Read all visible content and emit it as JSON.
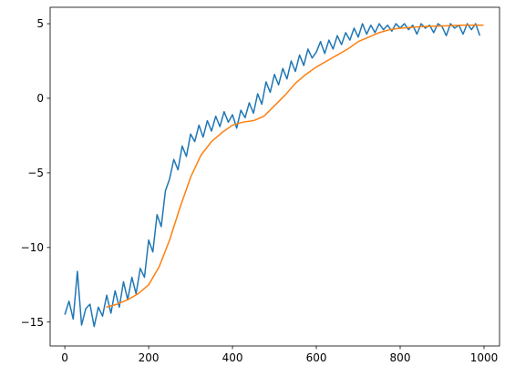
{
  "chart_data": {
    "type": "line",
    "xlim": [
      -35,
      1037
    ],
    "ylim": [
      -16.6,
      6.1
    ],
    "xticks": [
      0,
      200,
      400,
      600,
      800,
      1000
    ],
    "yticks": [
      {
        "value": -15,
        "label": "−15"
      },
      {
        "value": -10,
        "label": "−10"
      },
      {
        "value": -5,
        "label": "−5"
      },
      0,
      5
    ],
    "series": [
      {
        "color": "#1f77b4",
        "x": [
          0,
          10,
          20,
          30,
          40,
          50,
          60,
          70,
          80,
          90,
          100,
          110,
          120,
          130,
          140,
          150,
          160,
          170,
          180,
          190,
          200,
          210,
          220,
          230,
          240,
          250,
          260,
          270,
          280,
          290,
          300,
          310,
          320,
          330,
          340,
          350,
          360,
          370,
          380,
          390,
          400,
          410,
          420,
          430,
          440,
          450,
          460,
          470,
          480,
          490,
          500,
          510,
          520,
          530,
          540,
          550,
          560,
          570,
          580,
          590,
          600,
          610,
          620,
          630,
          640,
          650,
          660,
          670,
          680,
          690,
          700,
          710,
          720,
          730,
          740,
          750,
          760,
          770,
          780,
          790,
          800,
          810,
          820,
          830,
          840,
          850,
          860,
          870,
          880,
          890,
          900,
          910,
          920,
          930,
          940,
          950,
          960,
          970,
          980,
          990
        ],
        "values": [
          -14.5,
          -13.6,
          -14.8,
          -11.6,
          -15.2,
          -14.1,
          -13.8,
          -15.3,
          -14.0,
          -14.6,
          -13.2,
          -14.4,
          -12.9,
          -14.0,
          -12.3,
          -13.5,
          -12.0,
          -13.1,
          -11.4,
          -12.0,
          -9.5,
          -10.3,
          -7.8,
          -8.6,
          -6.2,
          -5.4,
          -4.1,
          -4.8,
          -3.2,
          -3.9,
          -2.4,
          -2.9,
          -1.8,
          -2.6,
          -1.5,
          -2.2,
          -1.2,
          -1.9,
          -0.9,
          -1.6,
          -1.1,
          -2.0,
          -0.8,
          -1.3,
          -0.3,
          -1.0,
          0.3,
          -0.4,
          1.1,
          0.4,
          1.6,
          0.9,
          2.0,
          1.3,
          2.5,
          1.8,
          2.9,
          2.2,
          3.3,
          2.7,
          3.1,
          3.8,
          3.0,
          3.9,
          3.3,
          4.2,
          3.6,
          4.4,
          3.9,
          4.7,
          4.1,
          5.0,
          4.3,
          4.9,
          4.4,
          5.0,
          4.6,
          4.9,
          4.5,
          5.0,
          4.7,
          5.0,
          4.6,
          4.9,
          4.3,
          5.0,
          4.7,
          4.9,
          4.4,
          5.0,
          4.8,
          4.2,
          5.0,
          4.7,
          4.9,
          4.3,
          5.0,
          4.6,
          5.0,
          4.2
        ]
      },
      {
        "color": "#ff7f0e",
        "x": [
          99,
          125,
          150,
          175,
          200,
          225,
          250,
          275,
          300,
          325,
          350,
          375,
          400,
          425,
          450,
          475,
          500,
          525,
          550,
          575,
          600,
          625,
          650,
          675,
          700,
          725,
          750,
          775,
          800,
          850,
          900,
          950,
          999
        ],
        "values": [
          -14.0,
          -13.8,
          -13.5,
          -13.1,
          -12.5,
          -11.3,
          -9.5,
          -7.3,
          -5.3,
          -3.8,
          -2.9,
          -2.3,
          -1.8,
          -1.6,
          -1.5,
          -1.2,
          -0.5,
          0.2,
          1.0,
          1.6,
          2.1,
          2.5,
          2.9,
          3.3,
          3.8,
          4.1,
          4.4,
          4.6,
          4.7,
          4.8,
          4.85,
          4.9,
          4.9
        ]
      }
    ]
  }
}
